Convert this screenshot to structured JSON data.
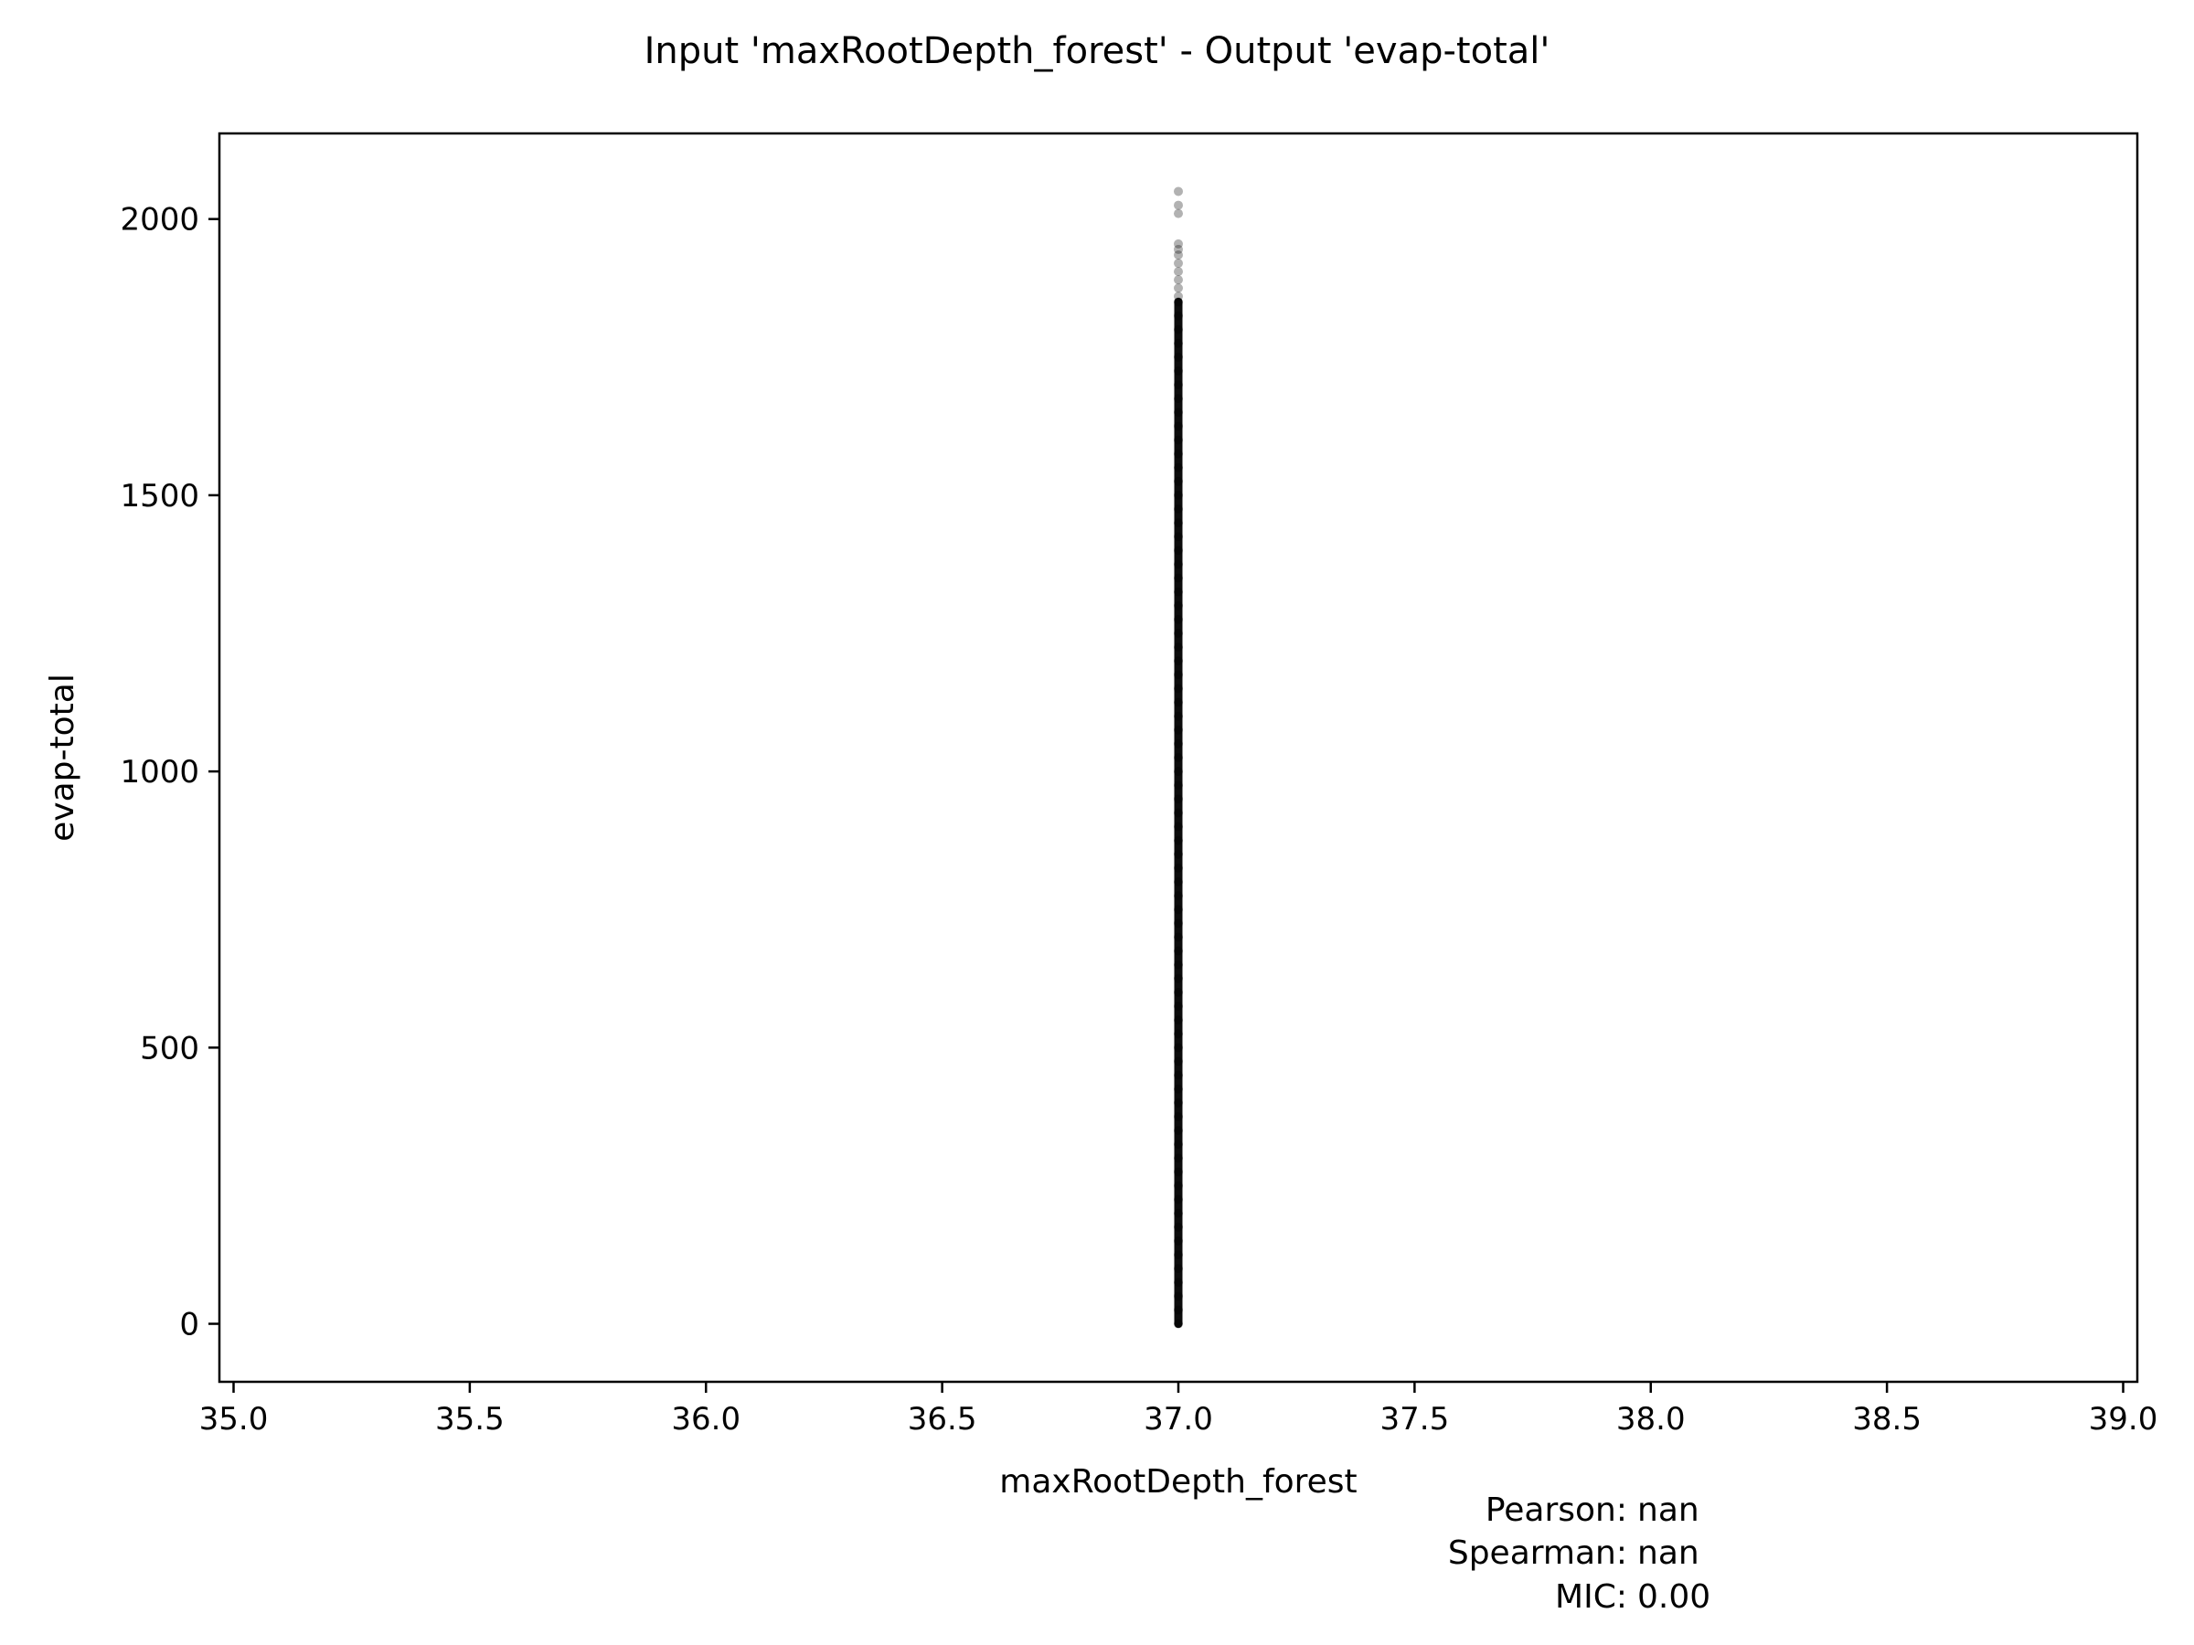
{
  "chart_data": {
    "type": "scatter",
    "title": "Input 'maxRootDepth_forest' - Output 'evap-total'",
    "xlabel": "maxRootDepth_forest",
    "ylabel": "evap-total",
    "xlim": [
      34.97,
      39.03
    ],
    "ylim": [
      -105,
      2155
    ],
    "x_ticks": [
      35.0,
      35.5,
      36.0,
      36.5,
      37.0,
      37.5,
      38.0,
      38.5,
      39.0
    ],
    "x_tick_labels": [
      "35.0",
      "35.5",
      "36.0",
      "36.5",
      "37.0",
      "37.5",
      "38.0",
      "38.5",
      "39.0"
    ],
    "y_ticks": [
      0,
      500,
      1000,
      1500,
      2000
    ],
    "y_tick_labels": [
      "0",
      "500",
      "1000",
      "1500",
      "2000"
    ],
    "grid": false,
    "marker_color": "#000000",
    "series": [
      {
        "x_constant": 37.0,
        "dense_y_range": [
          0,
          1850
        ],
        "outlier_points": [
          {
            "x": 37.0,
            "y": 2050
          },
          {
            "x": 37.0,
            "y": 2025
          },
          {
            "x": 37.0,
            "y": 2010
          },
          {
            "x": 37.0,
            "y": 1955
          },
          {
            "x": 37.0,
            "y": 1945
          },
          {
            "x": 37.0,
            "y": 1935
          },
          {
            "x": 37.0,
            "y": 1920
          },
          {
            "x": 37.0,
            "y": 1905
          },
          {
            "x": 37.0,
            "y": 1890
          },
          {
            "x": 37.0,
            "y": 1875
          },
          {
            "x": 37.0,
            "y": 1860
          }
        ]
      }
    ],
    "stats": {
      "pearson_label": "Pearson:",
      "pearson_value": "nan",
      "spearman_label": "Spearman:",
      "spearman_value": "nan",
      "mic_label": "MIC:",
      "mic_value": "0.00"
    }
  }
}
